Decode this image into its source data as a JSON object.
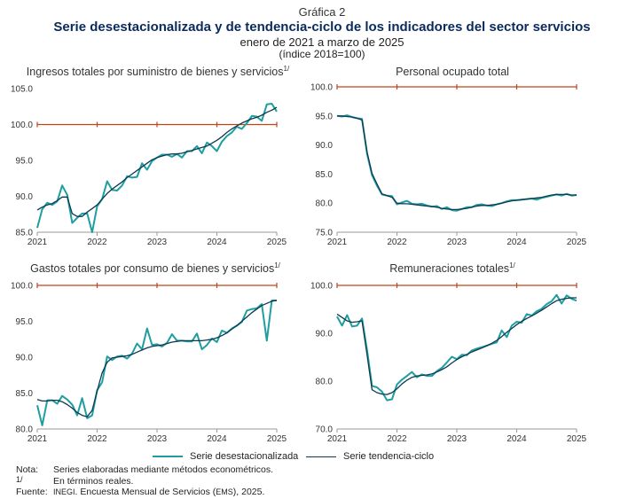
{
  "header": {
    "label": "Gráfica 2",
    "title": "Serie desestacionalizada y de tendencia-ciclo de los indicadores del sector servicios",
    "subtitle": "enero de 2021 a marzo de 2025",
    "unit": "(índice 2018=100)"
  },
  "colors": {
    "seasonal": "#1f9ea0",
    "trend": "#0c3a52",
    "reference": "#c0441a",
    "axis": "#999999"
  },
  "legend": {
    "seasonal": "Serie desestacionalizada",
    "trend": "Serie tendencia-ciclo"
  },
  "notes": {
    "nota_label": "Nota:",
    "nota_text": "Series elaboradas mediante métodos econométricos.",
    "ref_mark": "1/",
    "ref_text": "En términos reales.",
    "fuente_label": "Fuente:",
    "fuente_inegi": "INEGI",
    "fuente_mid": ". Encuesta Mensual de Servicios (",
    "fuente_ems": "EMS",
    "fuente_end": "), 2025."
  },
  "chart_data": [
    {
      "type": "line",
      "title": "Ingresos totales por suministro de bienes y servicios",
      "title_sup": "1/",
      "xticks": [
        "2021",
        "2022",
        "2023",
        "2024",
        "2025"
      ],
      "yticks": [
        "85.0",
        "90.0",
        "95.0",
        "100.0",
        "105.0"
      ],
      "ylim": [
        85,
        105
      ],
      "reference": 100,
      "series": [
        {
          "name": "Serie desestacionalizada",
          "values": [
            85.6,
            88.2,
            89.1,
            88.8,
            89.3,
            91.5,
            90.2,
            86.3,
            87.0,
            87.6,
            87.6,
            85.0,
            88.6,
            89.6,
            92.1,
            90.9,
            90.8,
            91.5,
            92.8,
            92.6,
            92.7,
            94.6,
            93.7,
            94.9,
            95.4,
            95.8,
            95.8,
            95.5,
            95.9,
            95.4,
            96.3,
            96.3,
            97.0,
            96.0,
            97.5,
            97.0,
            96.3,
            97.6,
            98.4,
            98.9,
            99.7,
            99.4,
            100.2,
            101.2,
            101.1,
            100.5,
            102.8,
            102.9,
            101.8
          ]
        },
        {
          "name": "Serie tendencia-ciclo",
          "values": [
            88.1,
            88.5,
            88.8,
            89.0,
            89.4,
            89.9,
            89.9,
            87.6,
            87.2,
            87.2,
            87.8,
            88.3,
            88.8,
            89.6,
            90.4,
            91.0,
            91.5,
            92.0,
            92.6,
            93.1,
            93.6,
            94.1,
            94.6,
            95.1,
            95.4,
            95.6,
            95.8,
            95.9,
            95.9,
            96.0,
            96.2,
            96.4,
            96.6,
            96.8,
            97.0,
            97.4,
            97.8,
            98.3,
            98.9,
            99.4,
            99.8,
            100.2,
            100.5,
            100.8,
            101.0,
            101.3,
            101.7,
            102.0,
            102.4
          ]
        }
      ]
    },
    {
      "type": "line",
      "title": "Personal ocupado total",
      "title_sup": "",
      "xticks": [
        "2021",
        "2022",
        "2023",
        "2024",
        "2025"
      ],
      "yticks": [
        "75.0",
        "80.0",
        "85.0",
        "90.0",
        "95.0",
        "100.0"
      ],
      "ylim": [
        75,
        100
      ],
      "reference": 100,
      "series": [
        {
          "name": "Serie desestacionalizada",
          "values": [
            95.0,
            94.9,
            95.1,
            94.8,
            94.6,
            94.5,
            88.5,
            84.8,
            83.0,
            81.5,
            81.3,
            81.2,
            79.8,
            80.1,
            80.4,
            79.9,
            79.8,
            79.9,
            79.6,
            79.4,
            79.5,
            79.0,
            79.3,
            78.8,
            78.7,
            79.0,
            79.3,
            79.3,
            79.7,
            79.8,
            79.6,
            79.5,
            79.8,
            80.0,
            80.3,
            80.5,
            80.5,
            80.6,
            80.7,
            80.8,
            80.6,
            80.9,
            81.1,
            81.3,
            81.5,
            81.3,
            81.6,
            81.3,
            81.4
          ]
        },
        {
          "name": "Serie tendencia-ciclo",
          "values": [
            95.0,
            95.0,
            94.9,
            94.8,
            94.6,
            94.3,
            88.8,
            85.1,
            83.3,
            81.6,
            81.3,
            81.0,
            80.0,
            79.9,
            79.9,
            79.8,
            79.7,
            79.6,
            79.5,
            79.4,
            79.3,
            79.1,
            79.0,
            78.9,
            78.9,
            79.0,
            79.1,
            79.3,
            79.5,
            79.6,
            79.6,
            79.7,
            79.8,
            80.0,
            80.2,
            80.4,
            80.5,
            80.6,
            80.7,
            80.8,
            80.9,
            81.0,
            81.2,
            81.4,
            81.5,
            81.5,
            81.5,
            81.4,
            81.4
          ]
        }
      ]
    },
    {
      "type": "line",
      "title": "Gastos totales por consumo de bienes y servicios",
      "title_sup": "1/",
      "xticks": [
        "2021",
        "2022",
        "2023",
        "2024",
        "2025"
      ],
      "yticks": [
        "80.0",
        "85.0",
        "90.0",
        "95.0",
        "100.0"
      ],
      "ylim": [
        80,
        100
      ],
      "reference": 100,
      "series": [
        {
          "name": "Serie desestacionalizada",
          "values": [
            83.3,
            80.5,
            84.0,
            84.0,
            83.5,
            84.6,
            84.1,
            83.4,
            81.9,
            84.3,
            81.5,
            81.9,
            85.4,
            86.5,
            90.1,
            89.6,
            90.1,
            90.2,
            89.8,
            90.5,
            91.9,
            91.1,
            94.0,
            91.7,
            91.8,
            91.5,
            92.0,
            93.2,
            92.3,
            92.3,
            92.2,
            92.2,
            93.3,
            91.1,
            91.7,
            92.6,
            92.1,
            93.7,
            93.4,
            94.0,
            94.4,
            94.9,
            96.5,
            96.7,
            96.8,
            97.4,
            92.3,
            97.9,
            97.9
          ]
        },
        {
          "name": "Serie tendencia-ciclo",
          "values": [
            84.1,
            83.9,
            83.9,
            84.0,
            84.0,
            83.8,
            83.4,
            82.9,
            82.3,
            81.9,
            81.7,
            82.6,
            85.3,
            87.8,
            89.3,
            89.9,
            90.0,
            90.1,
            90.2,
            90.4,
            90.7,
            91.0,
            91.3,
            91.5,
            91.6,
            91.7,
            91.9,
            92.1,
            92.2,
            92.3,
            92.3,
            92.3,
            92.3,
            92.3,
            92.4,
            92.5,
            92.7,
            93.0,
            93.4,
            93.9,
            94.4,
            95.0,
            95.6,
            96.2,
            96.7,
            97.2,
            97.5,
            97.8,
            97.9
          ]
        }
      ]
    },
    {
      "type": "line",
      "title": "Remuneraciones totales",
      "title_sup": "1/",
      "xticks": [
        "2021",
        "2022",
        "2023",
        "2024",
        "2025"
      ],
      "yticks": [
        "70.0",
        "80.0",
        "90.0",
        "100.0"
      ],
      "ylim": [
        70,
        100
      ],
      "reference": 100,
      "series": [
        {
          "name": "Serie desestacionalizada",
          "values": [
            93.5,
            91.6,
            93.8,
            91.4,
            91.6,
            93.1,
            86.5,
            79.0,
            78.7,
            77.8,
            76.0,
            76.2,
            79.3,
            80.3,
            81.1,
            81.9,
            80.8,
            81.4,
            81.1,
            81.1,
            82.1,
            82.8,
            83.9,
            85.1,
            84.6,
            85.5,
            85.4,
            86.4,
            86.8,
            87.1,
            87.4,
            87.8,
            88.1,
            90.6,
            89.2,
            91.6,
            92.4,
            92.2,
            94.0,
            93.7,
            94.6,
            95.1,
            96.1,
            96.7,
            98.0,
            96.2,
            97.9,
            97.2,
            96.8
          ]
        },
        {
          "name": "Serie tendencia-ciclo",
          "values": [
            94.0,
            93.3,
            92.6,
            92.3,
            92.4,
            92.6,
            85.5,
            78.2,
            77.6,
            77.3,
            77.2,
            77.6,
            78.4,
            79.4,
            80.2,
            80.8,
            81.1,
            81.2,
            81.3,
            81.5,
            81.9,
            82.4,
            83.0,
            83.8,
            84.5,
            85.1,
            85.6,
            86.1,
            86.5,
            86.9,
            87.4,
            87.9,
            88.5,
            89.3,
            90.2,
            91.0,
            91.8,
            92.5,
            93.1,
            93.6,
            94.2,
            94.8,
            95.5,
            96.2,
            96.8,
            97.1,
            97.3,
            97.4,
            97.4
          ]
        }
      ]
    }
  ]
}
